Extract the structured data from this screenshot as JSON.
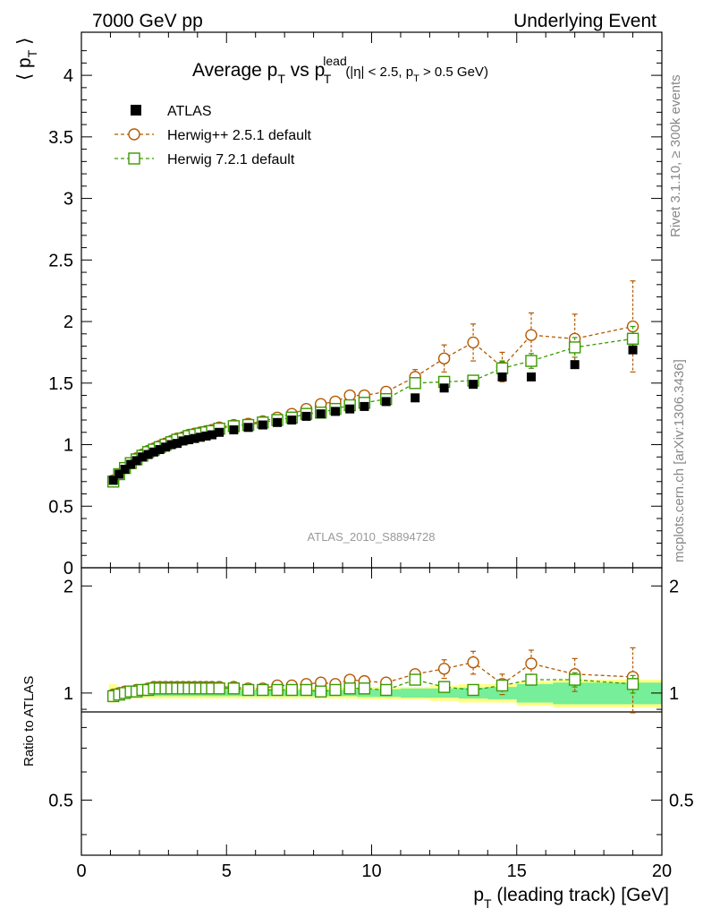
{
  "header": {
    "left": "7000 GeV pp",
    "right": "Underlying Event"
  },
  "side_labels": {
    "rivet": "Rivet 3.1.10, ≥ 300k events",
    "mcplots": "mcplots.cern.ch [arXiv:1306.3436]"
  },
  "chart_data": [
    {
      "type": "scatter",
      "title": "Average p_T vs p_T^lead (|η| < 2.5, p_T > 0.5 GeV)",
      "title_parts": {
        "main": "Average p",
        "sub1": "T",
        "vs": " vs p",
        "sup": "lead",
        "sub2": "T",
        "cut_a": "(|η| < 2.5, p",
        "cut_sub": "T",
        "cut_b": " > 0.5 GeV)"
      },
      "ylabel": "⟨ p_T ⟩",
      "ylabel_parts": {
        "open": "⟨ p",
        "sub": "T",
        "close": " ⟩"
      },
      "xlim": [
        0,
        20
      ],
      "ylim": [
        0,
        4.35
      ],
      "yticks": [
        "0",
        "0.5",
        "1",
        "1.5",
        "2",
        "2.5",
        "3",
        "3.5",
        "4"
      ],
      "watermark": "ATLAS_2010_S8894728",
      "legend": [
        {
          "name": "ATLAS",
          "marker": "filled-square",
          "color": "#000000"
        },
        {
          "name": "Herwig++ 2.5.1 default",
          "marker": "open-circle",
          "color": "#b35900"
        },
        {
          "name": "Herwig 7.2.1 default",
          "marker": "open-square",
          "color": "#3a9a00"
        }
      ],
      "legend_position": "top-left",
      "x": [
        1.1,
        1.3,
        1.5,
        1.7,
        1.9,
        2.1,
        2.3,
        2.5,
        2.7,
        2.9,
        3.1,
        3.3,
        3.5,
        3.7,
        3.9,
        4.1,
        4.3,
        4.5,
        4.75,
        5.25,
        5.75,
        6.25,
        6.75,
        7.25,
        7.75,
        8.25,
        8.75,
        9.25,
        9.75,
        10.5,
        11.5,
        12.5,
        13.5,
        14.5,
        15.5,
        17.0,
        19.0
      ],
      "series": [
        {
          "name": "ATLAS",
          "values": [
            0.71,
            0.76,
            0.8,
            0.84,
            0.87,
            0.9,
            0.92,
            0.94,
            0.96,
            0.98,
            1.0,
            1.01,
            1.03,
            1.04,
            1.05,
            1.06,
            1.07,
            1.08,
            1.1,
            1.12,
            1.14,
            1.16,
            1.18,
            1.2,
            1.23,
            1.25,
            1.27,
            1.29,
            1.31,
            1.35,
            1.38,
            1.46,
            1.49,
            1.55,
            1.55,
            1.65,
            1.77
          ]
        },
        {
          "name": "Herwig++ 2.5.1 default",
          "values": [
            0.71,
            0.76,
            0.81,
            0.85,
            0.89,
            0.92,
            0.95,
            0.97,
            0.99,
            1.01,
            1.03,
            1.05,
            1.06,
            1.08,
            1.09,
            1.1,
            1.11,
            1.12,
            1.14,
            1.16,
            1.17,
            1.19,
            1.22,
            1.25,
            1.29,
            1.33,
            1.35,
            1.4,
            1.4,
            1.43,
            1.55,
            1.7,
            1.83,
            1.63,
            1.89,
            1.86,
            1.96
          ],
          "errors": [
            0.01,
            0.01,
            0.01,
            0.01,
            0.01,
            0.01,
            0.01,
            0.01,
            0.01,
            0.01,
            0.01,
            0.01,
            0.01,
            0.01,
            0.01,
            0.01,
            0.01,
            0.01,
            0.01,
            0.01,
            0.01,
            0.01,
            0.01,
            0.02,
            0.02,
            0.03,
            0.03,
            0.03,
            0.04,
            0.04,
            0.06,
            0.11,
            0.15,
            0.12,
            0.18,
            0.2,
            0.37
          ]
        },
        {
          "name": "Herwig 7.2.1 default",
          "values": [
            0.7,
            0.76,
            0.81,
            0.85,
            0.88,
            0.91,
            0.94,
            0.96,
            0.98,
            1.0,
            1.02,
            1.04,
            1.05,
            1.07,
            1.08,
            1.09,
            1.1,
            1.11,
            1.13,
            1.15,
            1.16,
            1.18,
            1.2,
            1.22,
            1.25,
            1.26,
            1.29,
            1.32,
            1.34,
            1.37,
            1.5,
            1.51,
            1.52,
            1.62,
            1.68,
            1.79,
            1.86
          ],
          "errors": [
            0.01,
            0.01,
            0.01,
            0.01,
            0.01,
            0.01,
            0.01,
            0.01,
            0.01,
            0.01,
            0.01,
            0.01,
            0.01,
            0.01,
            0.01,
            0.01,
            0.01,
            0.01,
            0.01,
            0.01,
            0.01,
            0.01,
            0.01,
            0.01,
            0.01,
            0.02,
            0.02,
            0.02,
            0.02,
            0.03,
            0.04,
            0.04,
            0.04,
            0.06,
            0.06,
            0.08,
            0.1
          ]
        }
      ]
    },
    {
      "type": "scatter",
      "ylabel": "Ratio to ATLAS",
      "xlabel": "p_T (leading track) [GeV]",
      "xlabel_parts": {
        "p": "p",
        "sub": "T",
        "rest": " (leading track) [GeV]"
      },
      "xlim": [
        0,
        20
      ],
      "ylim": [
        0.35,
        2.25
      ],
      "xticks": [
        "0",
        "5",
        "10",
        "15",
        "20"
      ],
      "yticks": [
        "0.5",
        "1",
        "2"
      ],
      "ratio_reference": 1,
      "band_inner_halfwidth": [
        0.02,
        0.02,
        0.02,
        0.02,
        0.02,
        0.02,
        0.02,
        0.02,
        0.02,
        0.02,
        0.02,
        0.02,
        0.02,
        0.02,
        0.02,
        0.02,
        0.02,
        0.02,
        0.02,
        0.02,
        0.02,
        0.02,
        0.02,
        0.02,
        0.02,
        0.02,
        0.02,
        0.02,
        0.025,
        0.025,
        0.03,
        0.03,
        0.035,
        0.04,
        0.06,
        0.07,
        0.07
      ],
      "band_outer_halfwidth": [
        0.06,
        0.04,
        0.035,
        0.035,
        0.035,
        0.035,
        0.035,
        0.035,
        0.035,
        0.035,
        0.035,
        0.035,
        0.035,
        0.035,
        0.035,
        0.035,
        0.035,
        0.035,
        0.035,
        0.035,
        0.035,
        0.035,
        0.035,
        0.035,
        0.035,
        0.035,
        0.035,
        0.035,
        0.04,
        0.04,
        0.04,
        0.05,
        0.06,
        0.06,
        0.08,
        0.09,
        0.09
      ],
      "series": [
        {
          "name": "Herwig++ 2.5.1 default",
          "values": [
            0.99,
            1.0,
            1.01,
            1.01,
            1.02,
            1.02,
            1.03,
            1.04,
            1.04,
            1.04,
            1.04,
            1.04,
            1.04,
            1.04,
            1.04,
            1.04,
            1.04,
            1.04,
            1.04,
            1.04,
            1.03,
            1.03,
            1.05,
            1.05,
            1.06,
            1.07,
            1.06,
            1.09,
            1.08,
            1.07,
            1.13,
            1.17,
            1.22,
            1.06,
            1.21,
            1.13,
            1.11
          ],
          "errors": [
            0.01,
            0.01,
            0.01,
            0.01,
            0.01,
            0.01,
            0.01,
            0.01,
            0.01,
            0.01,
            0.01,
            0.01,
            0.01,
            0.01,
            0.01,
            0.01,
            0.01,
            0.01,
            0.01,
            0.01,
            0.01,
            0.01,
            0.01,
            0.01,
            0.01,
            0.02,
            0.02,
            0.02,
            0.02,
            0.03,
            0.04,
            0.07,
            0.09,
            0.07,
            0.11,
            0.12,
            0.23
          ]
        },
        {
          "name": "Herwig 7.2.1 default",
          "values": [
            0.98,
            0.99,
            1.0,
            1.01,
            1.01,
            1.02,
            1.02,
            1.03,
            1.03,
            1.03,
            1.03,
            1.03,
            1.03,
            1.03,
            1.03,
            1.03,
            1.03,
            1.03,
            1.03,
            1.03,
            1.02,
            1.02,
            1.02,
            1.02,
            1.02,
            1.01,
            1.02,
            1.03,
            1.03,
            1.02,
            1.09,
            1.04,
            1.02,
            1.05,
            1.09,
            1.09,
            1.06
          ],
          "errors": [
            0.01,
            0.01,
            0.01,
            0.01,
            0.01,
            0.01,
            0.01,
            0.01,
            0.01,
            0.01,
            0.01,
            0.01,
            0.01,
            0.01,
            0.01,
            0.01,
            0.01,
            0.01,
            0.01,
            0.01,
            0.01,
            0.01,
            0.01,
            0.01,
            0.01,
            0.01,
            0.01,
            0.01,
            0.01,
            0.02,
            0.03,
            0.03,
            0.03,
            0.04,
            0.04,
            0.05,
            0.06
          ]
        }
      ]
    }
  ]
}
